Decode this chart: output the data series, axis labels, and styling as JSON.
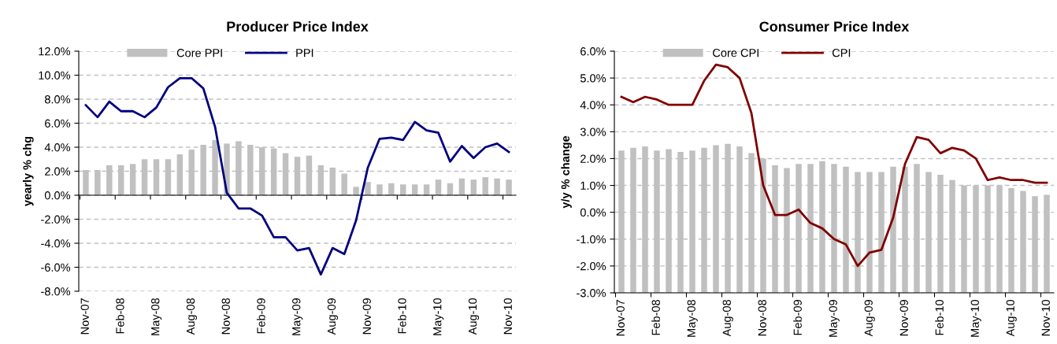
{
  "chart_data": [
    {
      "type": "bar",
      "title": "Producer Price Index",
      "ylabel": "yearly % chg",
      "categories": [
        "Nov-07",
        null,
        null,
        "Feb-08",
        null,
        null,
        "May-08",
        null,
        null,
        "Aug-08",
        null,
        null,
        "Nov-08",
        null,
        null,
        "Feb-09",
        null,
        null,
        "May-09",
        null,
        null,
        "Aug-09",
        null,
        null,
        "Nov-09",
        null,
        null,
        "Feb-10",
        null,
        null,
        "May-10",
        null,
        null,
        "Aug-10",
        null,
        null,
        "Nov-10"
      ],
      "series": [
        {
          "name": "Core PPI",
          "color": "#c0c0c0",
          "values": [
            2.1,
            2.1,
            2.5,
            2.5,
            2.6,
            3.0,
            3.0,
            3.0,
            3.4,
            3.8,
            4.2,
            4.6,
            4.3,
            4.5,
            4.2,
            4.0,
            3.9,
            3.5,
            3.2,
            3.3,
            2.5,
            2.3,
            1.8,
            0.7,
            1.1,
            0.9,
            1.0,
            0.9,
            0.9,
            0.9,
            1.3,
            1.0,
            1.4,
            1.3,
            1.5,
            1.4,
            1.3
          ]
        },
        {
          "name": "PPI",
          "type": "line",
          "color": "#000080",
          "values": [
            7.5,
            6.5,
            7.8,
            7.0,
            7.0,
            6.5,
            7.3,
            9.0,
            9.75,
            9.75,
            8.9,
            5.7,
            0.2,
            -1.1,
            -1.1,
            -1.7,
            -3.5,
            -3.5,
            -4.6,
            -4.4,
            -6.6,
            -4.4,
            -4.9,
            -2.1,
            2.3,
            4.7,
            4.8,
            4.6,
            6.1,
            5.4,
            5.2,
            2.8,
            4.1,
            3.1,
            4.0,
            4.3,
            3.6
          ]
        }
      ],
      "ylim": [
        -8,
        12
      ],
      "yticks": [
        {
          "value": -8,
          "label": "-8.0%"
        },
        {
          "value": -6,
          "label": "-6.0%"
        },
        {
          "value": -4,
          "label": "-4.0%"
        },
        {
          "value": -2,
          "label": "-2.0%"
        },
        {
          "value": 0,
          "label": "0.0%"
        },
        {
          "value": 2,
          "label": "2.0%"
        },
        {
          "value": 4,
          "label": "4.0%"
        },
        {
          "value": 6,
          "label": "6.0%"
        },
        {
          "value": 8,
          "label": "8.0%"
        },
        {
          "value": 10,
          "label": "10.0%"
        },
        {
          "value": 12,
          "label": "12.0%"
        }
      ],
      "grid": "y",
      "legend": "top left"
    },
    {
      "type": "bar",
      "title": "Consumer Price Index",
      "ylabel": "y/y % change",
      "categories": [
        "Nov-07",
        null,
        null,
        "Feb-08",
        null,
        null,
        "May-08",
        null,
        null,
        "Aug-08",
        null,
        null,
        "Nov-08",
        null,
        null,
        "Feb-09",
        null,
        null,
        "May-09",
        null,
        null,
        "Aug-09",
        null,
        null,
        "Nov-09",
        null,
        null,
        "Feb-10",
        null,
        null,
        "May-10",
        null,
        null,
        "Aug-10",
        null,
        null,
        "Nov-10"
      ],
      "series": [
        {
          "name": "Core CPI",
          "color": "#c0c0c0",
          "base": [
            -3,
            -3,
            -3,
            -3,
            -3,
            -3,
            -3,
            -3,
            -3,
            -3,
            -3,
            -3,
            -3,
            -3,
            -3,
            -3,
            -3,
            -3,
            -3,
            -3,
            -3,
            -3,
            -3,
            -3,
            -3,
            -3,
            -3,
            -3,
            -3,
            -3,
            -3,
            -3,
            -3,
            -3,
            -3,
            -3,
            -3
          ],
          "values": [
            5.3,
            5.4,
            5.45,
            5.3,
            5.35,
            5.25,
            5.3,
            5.4,
            5.5,
            5.55,
            5.45,
            5.2,
            5.0,
            4.75,
            4.65,
            4.8,
            4.8,
            4.9,
            4.8,
            4.7,
            4.5,
            4.5,
            4.5,
            4.7,
            4.7,
            4.8,
            4.5,
            4.4,
            4.2,
            4.0,
            4.0,
            4.0,
            4.0,
            3.9,
            3.8,
            3.6,
            3.65
          ]
        },
        {
          "name": "CPI",
          "type": "line",
          "color": "#800000",
          "values": [
            4.3,
            4.1,
            4.3,
            4.2,
            4.0,
            4.0,
            4.0,
            4.9,
            5.5,
            5.4,
            5.0,
            3.7,
            1.0,
            -0.1,
            -0.1,
            0.1,
            -0.4,
            -0.6,
            -1.0,
            -1.2,
            -2.0,
            -1.5,
            -1.4,
            -0.2,
            1.8,
            2.8,
            2.7,
            2.2,
            2.4,
            2.3,
            2.0,
            1.2,
            1.3,
            1.2,
            1.2,
            1.1,
            1.1
          ]
        }
      ],
      "ylim": [
        -3,
        6
      ],
      "yticks": [
        {
          "value": -3,
          "label": "-3.0%"
        },
        {
          "value": -2,
          "label": "-2.0%"
        },
        {
          "value": -1,
          "label": "-1.0%"
        },
        {
          "value": 0,
          "label": "0.0%"
        },
        {
          "value": 1,
          "label": "1.0%"
        },
        {
          "value": 2,
          "label": "2.0%"
        },
        {
          "value": 3,
          "label": "3.0%"
        },
        {
          "value": 4,
          "label": "4.0%"
        },
        {
          "value": 5,
          "label": "5.0%"
        },
        {
          "value": 6,
          "label": "6.0%"
        }
      ],
      "grid": "y",
      "legend": "top left"
    }
  ]
}
